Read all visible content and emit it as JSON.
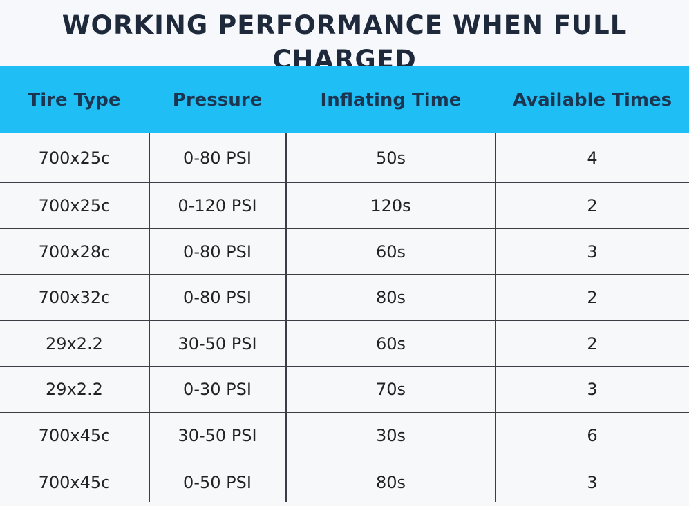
{
  "title": "WORKING PERFORMANCE WHEN FULL CHARGED",
  "table": {
    "headers": [
      "Tire Type",
      "Pressure",
      "Inflating Time",
      "Available Times"
    ],
    "rows": [
      [
        "700x25c",
        "0-80 PSI",
        "50s",
        "4"
      ],
      [
        "700x25c",
        "0-120 PSI",
        "120s",
        "2"
      ],
      [
        "700x28c",
        "0-80 PSI",
        "60s",
        "3"
      ],
      [
        "700x32c",
        "0-80 PSI",
        "80s",
        "2"
      ],
      [
        "29x2.2",
        "30-50 PSI",
        "60s",
        "2"
      ],
      [
        "29x2.2",
        "0-30 PSI",
        "70s",
        "3"
      ],
      [
        "700x45c",
        "30-50 PSI",
        "30s",
        "6"
      ],
      [
        "700x45c",
        "0-50 PSI",
        "80s",
        "3"
      ]
    ]
  },
  "colors": {
    "header_bg": "#1fbff5",
    "header_text": "#1c3550",
    "title_text": "#1e2a3b",
    "grid_line": "#3a3f45"
  }
}
